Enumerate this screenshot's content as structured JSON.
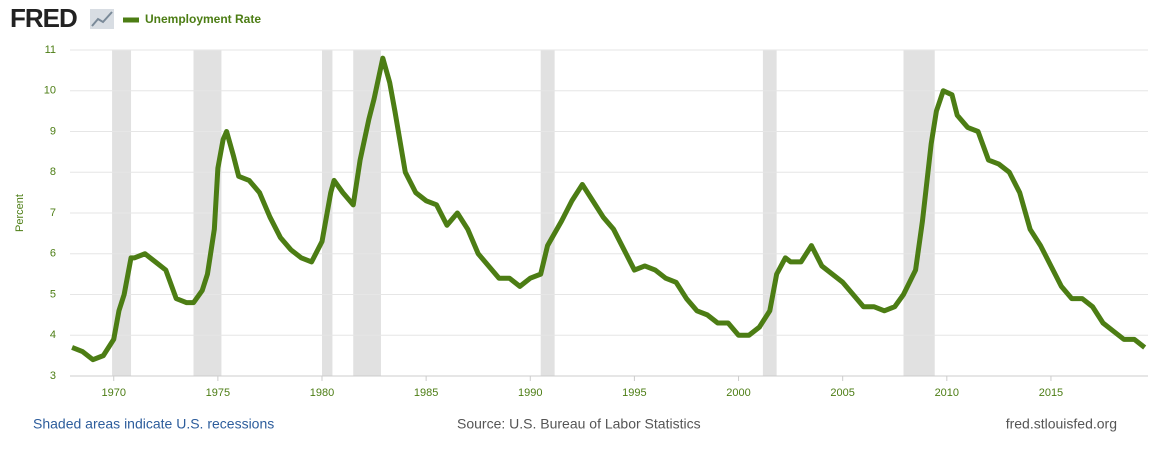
{
  "chart_data": {
    "type": "line",
    "logo": "FRED",
    "y_label": "Percent",
    "note": "Shaded areas indicate U.S. recessions",
    "source": "Source: U.S. Bureau of Labor Statistics",
    "site": "fred.stlouisfed.org",
    "x": [
      1968.0,
      1968.5,
      1969.0,
      1969.5,
      1970.0,
      1970.25,
      1970.5,
      1970.83,
      1971.0,
      1971.5,
      1972.0,
      1972.5,
      1973.0,
      1973.5,
      1973.83,
      1974.25,
      1974.5,
      1974.83,
      1975.0,
      1975.25,
      1975.42,
      1975.75,
      1976.0,
      1976.5,
      1977.0,
      1977.5,
      1978.0,
      1978.5,
      1979.0,
      1979.5,
      1980.0,
      1980.42,
      1980.58,
      1981.0,
      1981.5,
      1981.83,
      1982.25,
      1982.5,
      1982.92,
      1983.25,
      1983.5,
      1984.0,
      1984.5,
      1985.0,
      1985.5,
      1986.0,
      1986.5,
      1987.0,
      1987.5,
      1988.0,
      1988.5,
      1989.0,
      1989.5,
      1990.0,
      1990.5,
      1990.83,
      1991.5,
      1992.0,
      1992.5,
      1993.0,
      1993.5,
      1994.0,
      1994.5,
      1995.0,
      1995.5,
      1996.0,
      1996.5,
      1997.0,
      1997.5,
      1998.0,
      1998.5,
      1999.0,
      1999.5,
      2000.0,
      2000.5,
      2001.0,
      2001.5,
      2001.83,
      2002.25,
      2002.5,
      2003.0,
      2003.5,
      2004.0,
      2004.5,
      2005.0,
      2005.5,
      2006.0,
      2006.5,
      2007.0,
      2007.5,
      2007.92,
      2008.5,
      2008.83,
      2009.25,
      2009.5,
      2009.83,
      2010.25,
      2010.5,
      2011.0,
      2011.5,
      2012.0,
      2012.5,
      2013.0,
      2013.5,
      2014.0,
      2014.5,
      2015.0,
      2015.5,
      2016.0,
      2016.5,
      2017.0,
      2017.5,
      2018.0,
      2018.5,
      2019.0,
      2019.5
    ],
    "series": [
      {
        "name": "Unemployment Rate",
        "color": "#4c7d14",
        "values": [
          3.7,
          3.6,
          3.4,
          3.5,
          3.9,
          4.6,
          5.0,
          5.9,
          5.9,
          6.0,
          5.8,
          5.6,
          4.9,
          4.8,
          4.8,
          5.1,
          5.5,
          6.6,
          8.1,
          8.8,
          9.0,
          8.4,
          7.9,
          7.8,
          7.5,
          6.9,
          6.4,
          6.1,
          5.9,
          5.8,
          6.3,
          7.5,
          7.8,
          7.5,
          7.2,
          8.3,
          9.3,
          9.8,
          10.8,
          10.2,
          9.5,
          8.0,
          7.5,
          7.3,
          7.2,
          6.7,
          7.0,
          6.6,
          6.0,
          5.7,
          5.4,
          5.4,
          5.2,
          5.4,
          5.5,
          6.2,
          6.8,
          7.3,
          7.7,
          7.3,
          6.9,
          6.6,
          6.1,
          5.6,
          5.7,
          5.6,
          5.4,
          5.3,
          4.9,
          4.6,
          4.5,
          4.3,
          4.3,
          4.0,
          4.0,
          4.2,
          4.6,
          5.5,
          5.9,
          5.8,
          5.8,
          6.2,
          5.7,
          5.5,
          5.3,
          5.0,
          4.7,
          4.7,
          4.6,
          4.7,
          5.0,
          5.6,
          6.8,
          8.7,
          9.5,
          10.0,
          9.9,
          9.4,
          9.1,
          9.0,
          8.3,
          8.2,
          8.0,
          7.5,
          6.6,
          6.2,
          5.7,
          5.2,
          4.9,
          4.9,
          4.7,
          4.3,
          4.1,
          3.9,
          3.9,
          3.7
        ]
      }
    ],
    "recessions": [
      [
        1969.92,
        1970.83
      ],
      [
        1973.83,
        1975.17
      ],
      [
        1980.0,
        1980.5
      ],
      [
        1981.5,
        1982.83
      ],
      [
        1990.5,
        1991.17
      ],
      [
        2001.17,
        2001.83
      ],
      [
        2007.92,
        2009.42
      ]
    ],
    "recession_color": "#e1e1e1",
    "xlim": [
      1967.9,
      2019.66
    ],
    "ylim": [
      3,
      11
    ],
    "xticks": [
      1970,
      1975,
      1980,
      1985,
      1990,
      1995,
      2000,
      2005,
      2010,
      2015
    ],
    "yticks": [
      3,
      4,
      5,
      6,
      7,
      8,
      9,
      10,
      11
    ],
    "grid": true
  }
}
